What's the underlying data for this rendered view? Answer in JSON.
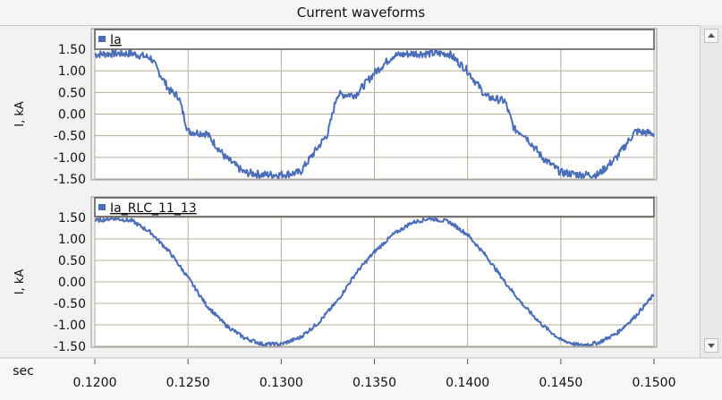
{
  "window": {
    "title": "Current waveforms"
  },
  "colors": {
    "series": "#4a6eb8",
    "grid": "#b8ad99",
    "plot_bg": "#ffffff",
    "frame": "#555555"
  },
  "chart_data": {
    "type": "line",
    "x_unit_label": "sec",
    "x_ticks": [
      "0.1200",
      "0.1250",
      "0.1300",
      "0.1350",
      "0.1400",
      "0.1450",
      "0.1500"
    ],
    "xlim": [
      0.12,
      0.15
    ],
    "grid": true,
    "legend_placement": "top-left",
    "panels": [
      {
        "ylabel": "I, kA",
        "ylim": [
          -1.5,
          1.5
        ],
        "y_ticks": [
          "1.50",
          "1.00",
          "0.50",
          "0.00",
          "-0.50",
          "-1.00",
          "-1.50"
        ],
        "series": [
          {
            "name": "Ia",
            "x": [
              0.12,
              0.121,
              0.122,
              0.123,
              0.124,
              0.1245,
              0.125,
              0.126,
              0.127,
              0.128,
              0.129,
              0.13,
              0.131,
              0.132,
              0.1325,
              0.133,
              0.134,
              0.135,
              0.136,
              0.137,
              0.138,
              0.139,
              0.14,
              0.141,
              0.142,
              0.1425,
              0.143,
              0.144,
              0.145,
              0.146,
              0.147,
              0.148,
              0.149,
              0.15
            ],
            "y": [
              1.38,
              1.4,
              1.4,
              1.3,
              0.55,
              0.4,
              -0.4,
              -0.45,
              -1.0,
              -1.35,
              -1.4,
              -1.4,
              -1.35,
              -0.75,
              -0.45,
              0.45,
              0.45,
              0.95,
              1.35,
              1.4,
              1.4,
              1.4,
              1.0,
              0.4,
              0.3,
              -0.35,
              -0.45,
              -1.0,
              -1.35,
              -1.4,
              -1.4,
              -1.0,
              -0.4,
              -0.45
            ]
          }
        ]
      },
      {
        "ylabel": "I, kA",
        "ylim": [
          -1.5,
          1.5
        ],
        "y_ticks": [
          "1.50",
          "1.00",
          "0.50",
          "0.00",
          "-0.50",
          "-1.00",
          "-1.50"
        ],
        "series": [
          {
            "name": "Ia_RLC_11_13",
            "x": [
              0.12,
              0.121,
              0.122,
              0.123,
              0.124,
              0.125,
              0.126,
              0.127,
              0.128,
              0.129,
              0.13,
              0.131,
              0.132,
              0.133,
              0.134,
              0.135,
              0.136,
              0.137,
              0.138,
              0.139,
              0.14,
              0.141,
              0.142,
              0.143,
              0.144,
              0.145,
              0.146,
              0.147,
              0.148,
              0.149,
              0.15
            ],
            "y": [
              1.42,
              1.48,
              1.42,
              1.15,
              0.7,
              0.1,
              -0.55,
              -1.0,
              -1.3,
              -1.45,
              -1.45,
              -1.3,
              -0.95,
              -0.45,
              0.2,
              0.7,
              1.1,
              1.38,
              1.48,
              1.4,
              1.1,
              0.6,
              0.0,
              -0.55,
              -1.0,
              -1.35,
              -1.48,
              -1.42,
              -1.2,
              -0.8,
              -0.3
            ]
          }
        ]
      }
    ]
  }
}
